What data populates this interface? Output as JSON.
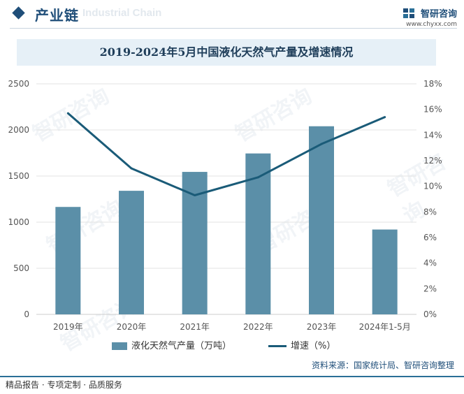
{
  "header": {
    "title": "产业链",
    "watermark": "Industrial Chain",
    "brand_name": "智研咨询",
    "brand_url": "www.chyxx.com"
  },
  "watermark_text": "智研咨询",
  "chart_data": {
    "type": "bar",
    "title": "2019-2024年5月中国液化天然气产量及增速情况",
    "categories": [
      "2019年",
      "2020年",
      "2021年",
      "2022年",
      "2023年",
      "2024年1-5月"
    ],
    "series": [
      {
        "name": "液化天然气产量（万吨）",
        "type": "bar",
        "axis": "left",
        "color": "#5b8fa8",
        "values": [
          1165,
          1340,
          1545,
          1745,
          2040,
          920
        ]
      },
      {
        "name": "增速（%）",
        "type": "line",
        "axis": "right",
        "color": "#1a5b78",
        "values": [
          15.7,
          11.4,
          9.3,
          10.7,
          13.3,
          15.4
        ]
      }
    ],
    "y_left": {
      "min": 0,
      "max": 2500,
      "step": 500,
      "ticks": [
        "0",
        "500",
        "1000",
        "1500",
        "2000",
        "2500"
      ]
    },
    "y_right": {
      "min": 0,
      "max": 18,
      "step": 2,
      "ticks": [
        "0%",
        "2%",
        "4%",
        "6%",
        "8%",
        "10%",
        "12%",
        "14%",
        "16%",
        "18%"
      ]
    },
    "grid": true,
    "legend_position": "bottom"
  },
  "footer": {
    "source": "资料来源：国家统计局、智研咨询整理",
    "tagline": "精品报告 · 专项定制 · 品质服务"
  }
}
